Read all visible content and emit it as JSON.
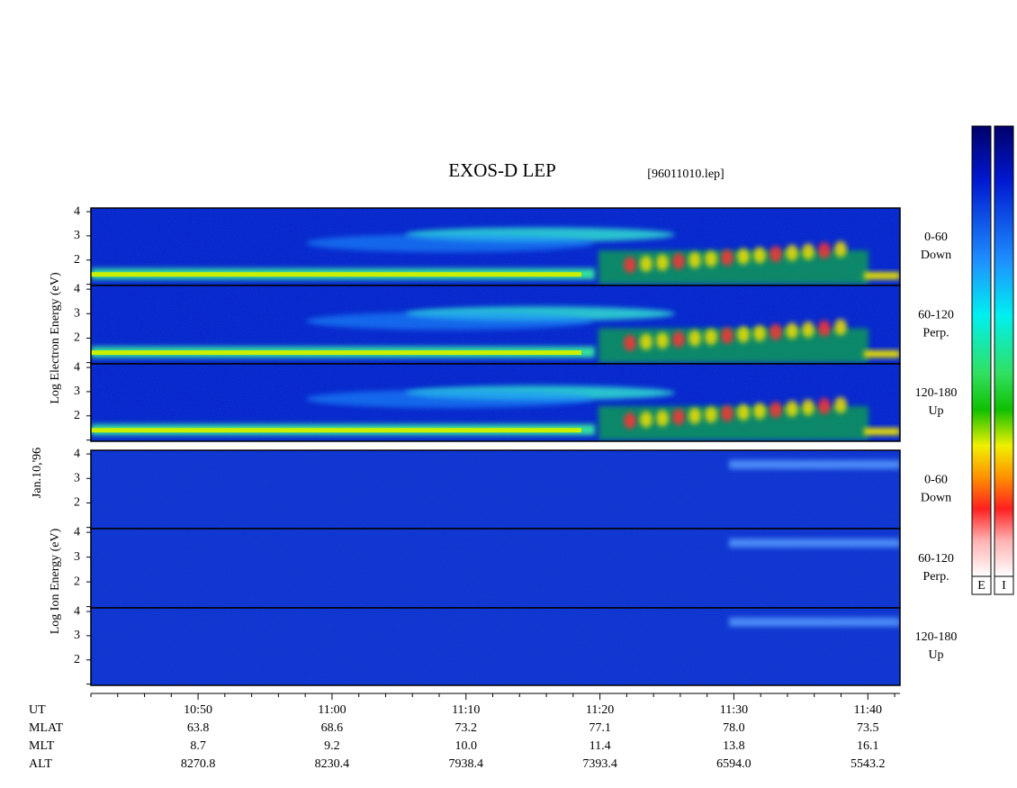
{
  "chart_data": {
    "type": "spectrogram",
    "title": "EXOS-D LEP",
    "file_label": "[96011010.lep]",
    "date_label": "Jan.10,'96",
    "ylim": [
      0.95,
      4.15
    ],
    "yticks": [
      1,
      2,
      3,
      4
    ],
    "ytick_labels": [
      null,
      "2",
      "3",
      "4"
    ],
    "xlim": [
      642,
      702.4
    ],
    "xticks": [
      {
        "value": 650,
        "label": "10:50"
      },
      {
        "value": 660,
        "label": "11:00"
      },
      {
        "value": 670,
        "label": "11:10"
      },
      {
        "value": 680,
        "label": "11:20"
      },
      {
        "value": 690,
        "label": "11:30"
      },
      {
        "value": 700,
        "label": "11:40"
      }
    ],
    "xminorticks": [
      642,
      644,
      646,
      648,
      652,
      654,
      656,
      658,
      662,
      664,
      666,
      668,
      672,
      674,
      676,
      678,
      682,
      684,
      686,
      688,
      692,
      694,
      696,
      698,
      702
    ],
    "groups": [
      {
        "ylabel": "Log Electron Energy (eV)",
        "species": "electron",
        "panels": [
          {
            "label": [
              "0-60",
              "Down"
            ]
          },
          {
            "label": [
              "60-120",
              "Perp."
            ]
          },
          {
            "label": [
              "120-180",
              "Up"
            ]
          }
        ]
      },
      {
        "ylabel": "Log Ion Energy (eV)",
        "species": "ion",
        "panels": [
          {
            "label": [
              "0-60",
              "Down"
            ]
          },
          {
            "label": [
              "60-120",
              "Perp."
            ]
          },
          {
            "label": [
              "120-180",
              "Up"
            ]
          }
        ]
      }
    ],
    "colorbar_labels": [
      "E",
      "I"
    ],
    "orbit_table": {
      "row_names": [
        "UT",
        "MLAT",
        "MLT",
        "ALT"
      ],
      "rows": [
        [
          "63.8",
          "68.6",
          "73.2",
          "77.1",
          "78.0",
          "73.5"
        ],
        [
          "8.7",
          "9.2",
          "10.0",
          "11.4",
          "13.8",
          "16.1"
        ],
        [
          "8270.8",
          "8230.4",
          "7938.4",
          "7393.4",
          "6594.0",
          "5543.2"
        ]
      ]
    }
  }
}
